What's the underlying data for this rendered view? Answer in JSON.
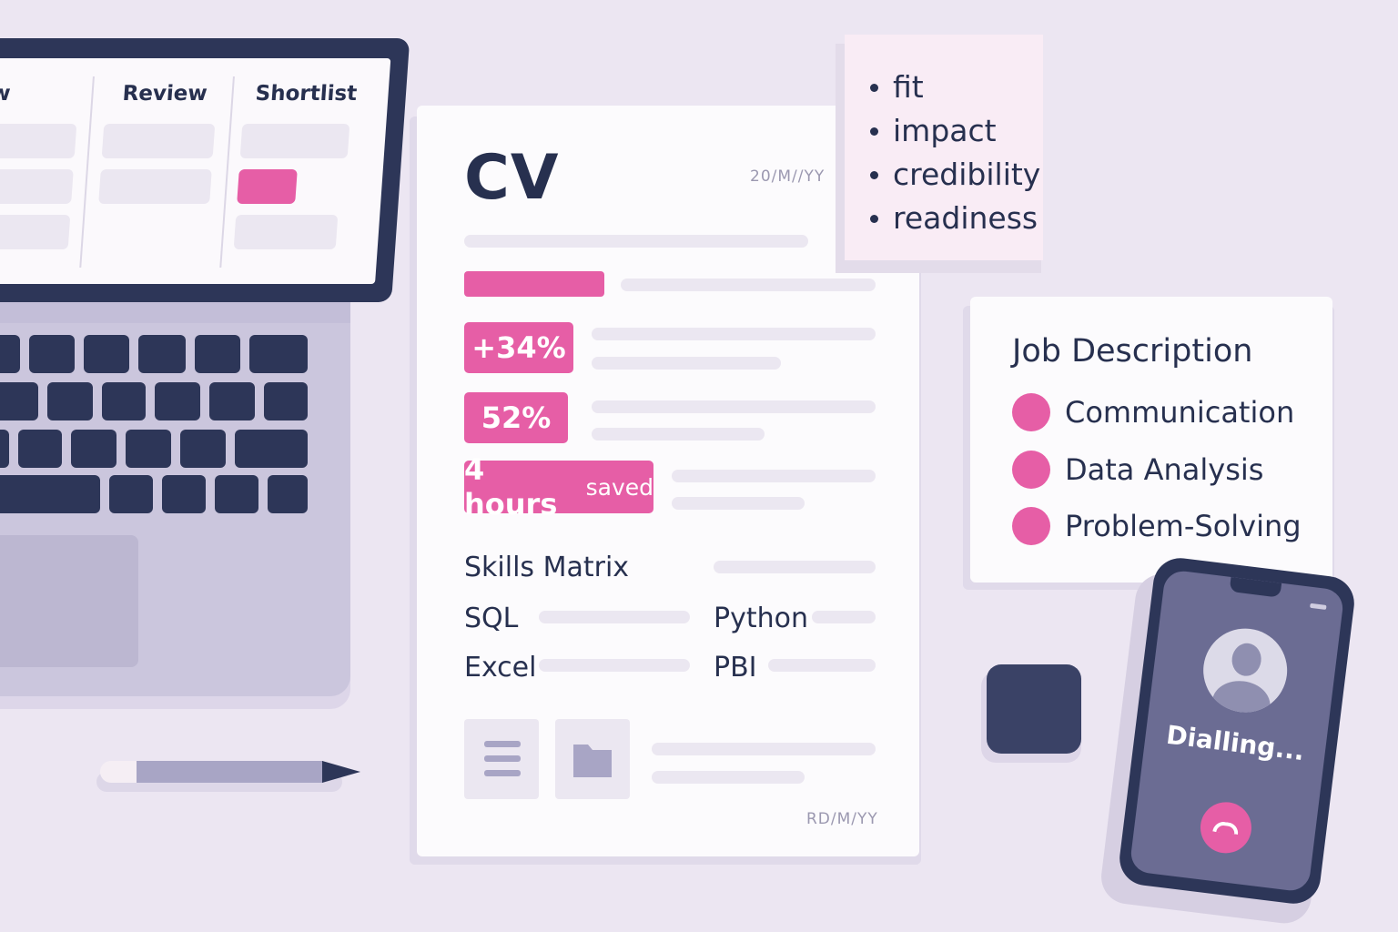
{
  "laptop": {
    "columns": [
      "ew",
      "Review",
      "Shortlist"
    ]
  },
  "cv": {
    "title": "CV",
    "date_top": "20/M//YY",
    "date_bottom": "RD/M/YY",
    "metrics": [
      {
        "value": "+34%"
      },
      {
        "value": "52%"
      },
      {
        "value": "4 hours",
        "suffix": "saved"
      }
    ],
    "skills_title": "Skills Matrix",
    "skills": [
      "SQL",
      "Python",
      "Excel",
      "PBI"
    ]
  },
  "note": {
    "items": [
      "fit",
      "impact",
      "credibility",
      "readiness"
    ]
  },
  "job_description": {
    "title": "Job Description",
    "items": [
      "Communication",
      "Data Analysis",
      "Problem-Solving"
    ]
  },
  "phone": {
    "status": "Dialling..."
  },
  "colors": {
    "accent": "#e65ea6",
    "navy": "#2d3658",
    "background": "#ece6f2"
  }
}
